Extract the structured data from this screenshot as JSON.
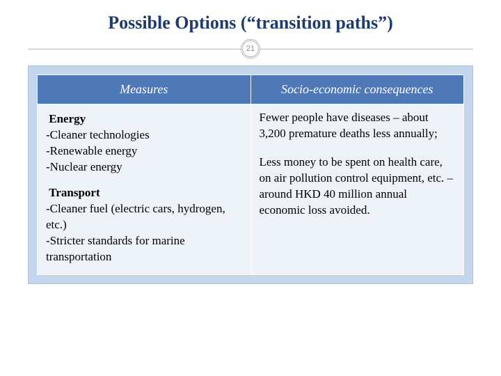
{
  "title": "Possible Options (“transition paths”)",
  "page_number": "21",
  "colors": {
    "title_color": "#1f3a6e",
    "header_bg": "#4f79b6",
    "header_text": "#ffffff",
    "cell_bg": "#eef3f9",
    "frame_bg": "#c3d6ec",
    "divider": "#b8b8b8"
  },
  "table": {
    "columns": [
      "Measures",
      "Socio-economic consequences"
    ],
    "measures": {
      "energy": {
        "heading": "Energy",
        "items": [
          "-Cleaner technologies",
          "-Renewable energy",
          "-Nuclear energy"
        ]
      },
      "transport": {
        "heading": "Transport",
        "items": [
          "-Cleaner fuel (electric cars, hydrogen, etc.)",
          "-Stricter standards for marine transportation"
        ]
      }
    },
    "consequences": [
      "Fewer people  have diseases – about 3,200 premature deaths less annually;",
      "Less money to be spent on health care, on air pollution control equipment, etc. – around HKD 40 million annual economic loss avoided."
    ]
  }
}
